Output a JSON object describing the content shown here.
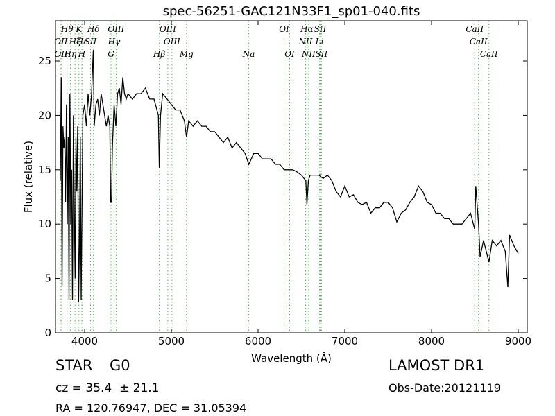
{
  "chart_data": {
    "type": "line",
    "title": "spec-56251-GAC121N33F1_sp01-040.fits",
    "x_label": "Wavelength (Å)",
    "y_label": "Flux (relative)",
    "color": "#000000",
    "marker_color": "#55bb55",
    "xlim": [
      3664,
      9104
    ],
    "ylim": [
      0,
      28.7
    ],
    "xticks": [
      4000,
      5000,
      6000,
      7000,
      8000,
      9000
    ],
    "yticks": [
      0,
      5,
      10,
      15,
      20,
      25
    ],
    "x": [
      3720,
      3730,
      3740,
      3750,
      3760,
      3770,
      3780,
      3790,
      3800,
      3810,
      3820,
      3830,
      3840,
      3850,
      3860,
      3870,
      3880,
      3890,
      3900,
      3910,
      3920,
      3930,
      3940,
      3950,
      3960,
      3970,
      3980,
      4000,
      4020,
      4040,
      4060,
      4080,
      4100,
      4110,
      4130,
      4150,
      4170,
      4190,
      4210,
      4230,
      4250,
      4270,
      4290,
      4300,
      4310,
      4320,
      4340,
      4360,
      4380,
      4400,
      4420,
      4440,
      4460,
      4480,
      4500,
      4550,
      4600,
      4650,
      4700,
      4750,
      4800,
      4850,
      4861,
      4875,
      4900,
      4950,
      5000,
      5050,
      5100,
      5150,
      5175,
      5200,
      5250,
      5300,
      5350,
      5400,
      5450,
      5500,
      5550,
      5600,
      5650,
      5700,
      5750,
      5800,
      5850,
      5893,
      5950,
      6000,
      6050,
      6100,
      6150,
      6200,
      6250,
      6300,
      6350,
      6400,
      6450,
      6500,
      6550,
      6563,
      6580,
      6600,
      6650,
      6700,
      6750,
      6800,
      6850,
      6900,
      6950,
      7000,
      7050,
      7100,
      7150,
      7200,
      7250,
      7300,
      7350,
      7400,
      7450,
      7500,
      7550,
      7600,
      7650,
      7700,
      7750,
      7800,
      7850,
      7900,
      7950,
      8000,
      8050,
      8100,
      8150,
      8200,
      8250,
      8300,
      8350,
      8400,
      8450,
      8498,
      8510,
      8542,
      8560,
      8600,
      8662,
      8700,
      8750,
      8800,
      8850,
      8880,
      8900,
      8950,
      9000
    ],
    "values": [
      14,
      23.5,
      4.3,
      19,
      17,
      18,
      12,
      21,
      10,
      18,
      3,
      22,
      10,
      15,
      3,
      20,
      12,
      5,
      18,
      13,
      19,
      2.8,
      8,
      18,
      3,
      12,
      20,
      21,
      19,
      22,
      20,
      22,
      26,
      19,
      21,
      21.5,
      20,
      22,
      21,
      20,
      19,
      20,
      19,
      12,
      12,
      17,
      21,
      19,
      22,
      22.5,
      21,
      23.5,
      22,
      21.5,
      22,
      21.5,
      22,
      22,
      22.5,
      21.5,
      21.5,
      20,
      15.2,
      20,
      22,
      21.5,
      21,
      20.5,
      20.5,
      19.5,
      18,
      19.5,
      19,
      19.5,
      19,
      19,
      18.5,
      18.5,
      18,
      17.5,
      18,
      17,
      17.5,
      17,
      16.5,
      15.5,
      16.5,
      16.5,
      16,
      16,
      16,
      15.5,
      15.5,
      15,
      15,
      15,
      14.8,
      14.5,
      14,
      11.8,
      14,
      14.5,
      14.5,
      14.5,
      14.2,
      14.5,
      14,
      13,
      12.5,
      13.5,
      12.5,
      12.7,
      12,
      11.8,
      12,
      11,
      11.5,
      11.5,
      12,
      12,
      11.5,
      10.2,
      11,
      11.3,
      12,
      12.5,
      13.5,
      13,
      12,
      11.8,
      11,
      11,
      10.5,
      10.5,
      10,
      10,
      10,
      10.5,
      11,
      9.5,
      13.5,
      10,
      7,
      8.5,
      6.5,
      8.5,
      8,
      8.5,
      7.5,
      4.2,
      9,
      8,
      7.3
    ],
    "spectral_lines": [
      [
        {
          "wavelength": 3798,
          "label": "Hθ"
        },
        {
          "wavelength": 3934,
          "label": "K"
        },
        {
          "wavelength": 4102,
          "label": "Hδ"
        },
        {
          "wavelength": 4363,
          "label": "OIII"
        },
        {
          "wavelength": 4959,
          "label": "OIII"
        },
        {
          "wavelength": 6300,
          "label": "OI"
        },
        {
          "wavelength": 6563,
          "label": "Hα"
        },
        {
          "wavelength": 6716,
          "label": "SII"
        },
        {
          "wavelength": 8498,
          "label": "CaII"
        }
      ],
      [
        {
          "wavelength": 3727,
          "label": "OII"
        },
        {
          "wavelength": 3889,
          "label": "Hζ"
        },
        {
          "wavelength": 3970,
          "label": "Hε"
        },
        {
          "wavelength": 4068,
          "label": "SII"
        },
        {
          "wavelength": 4340,
          "label": "Hγ"
        },
        {
          "wavelength": 5007,
          "label": "OIII"
        },
        {
          "wavelength": 6548,
          "label": "NII"
        },
        {
          "wavelength": 6708,
          "label": "Li"
        },
        {
          "wavelength": 8542,
          "label": "CaII"
        }
      ],
      [
        {
          "wavelength": 3729,
          "label": "OII"
        },
        {
          "wavelength": 3835,
          "label": "Hη"
        },
        {
          "wavelength": 3968,
          "label": "H"
        },
        {
          "wavelength": 4304,
          "label": "G"
        },
        {
          "wavelength": 4861,
          "label": "Hβ"
        },
        {
          "wavelength": 5175,
          "label": "Mg"
        },
        {
          "wavelength": 5893,
          "label": "Na"
        },
        {
          "wavelength": 6364,
          "label": "OI"
        },
        {
          "wavelength": 6583,
          "label": "NII"
        },
        {
          "wavelength": 6731,
          "label": "SII"
        },
        {
          "wavelength": 8662,
          "label": "CaII"
        }
      ]
    ],
    "annotations": {
      "class": "STAR",
      "subclass": "G0",
      "cz": "cz = 35.4  ± 21.1",
      "coords": "RA = 120.76947, DEC = 31.05394",
      "survey": "LAMOST DR1",
      "obs_date": "Obs-Date:20121119"
    }
  }
}
